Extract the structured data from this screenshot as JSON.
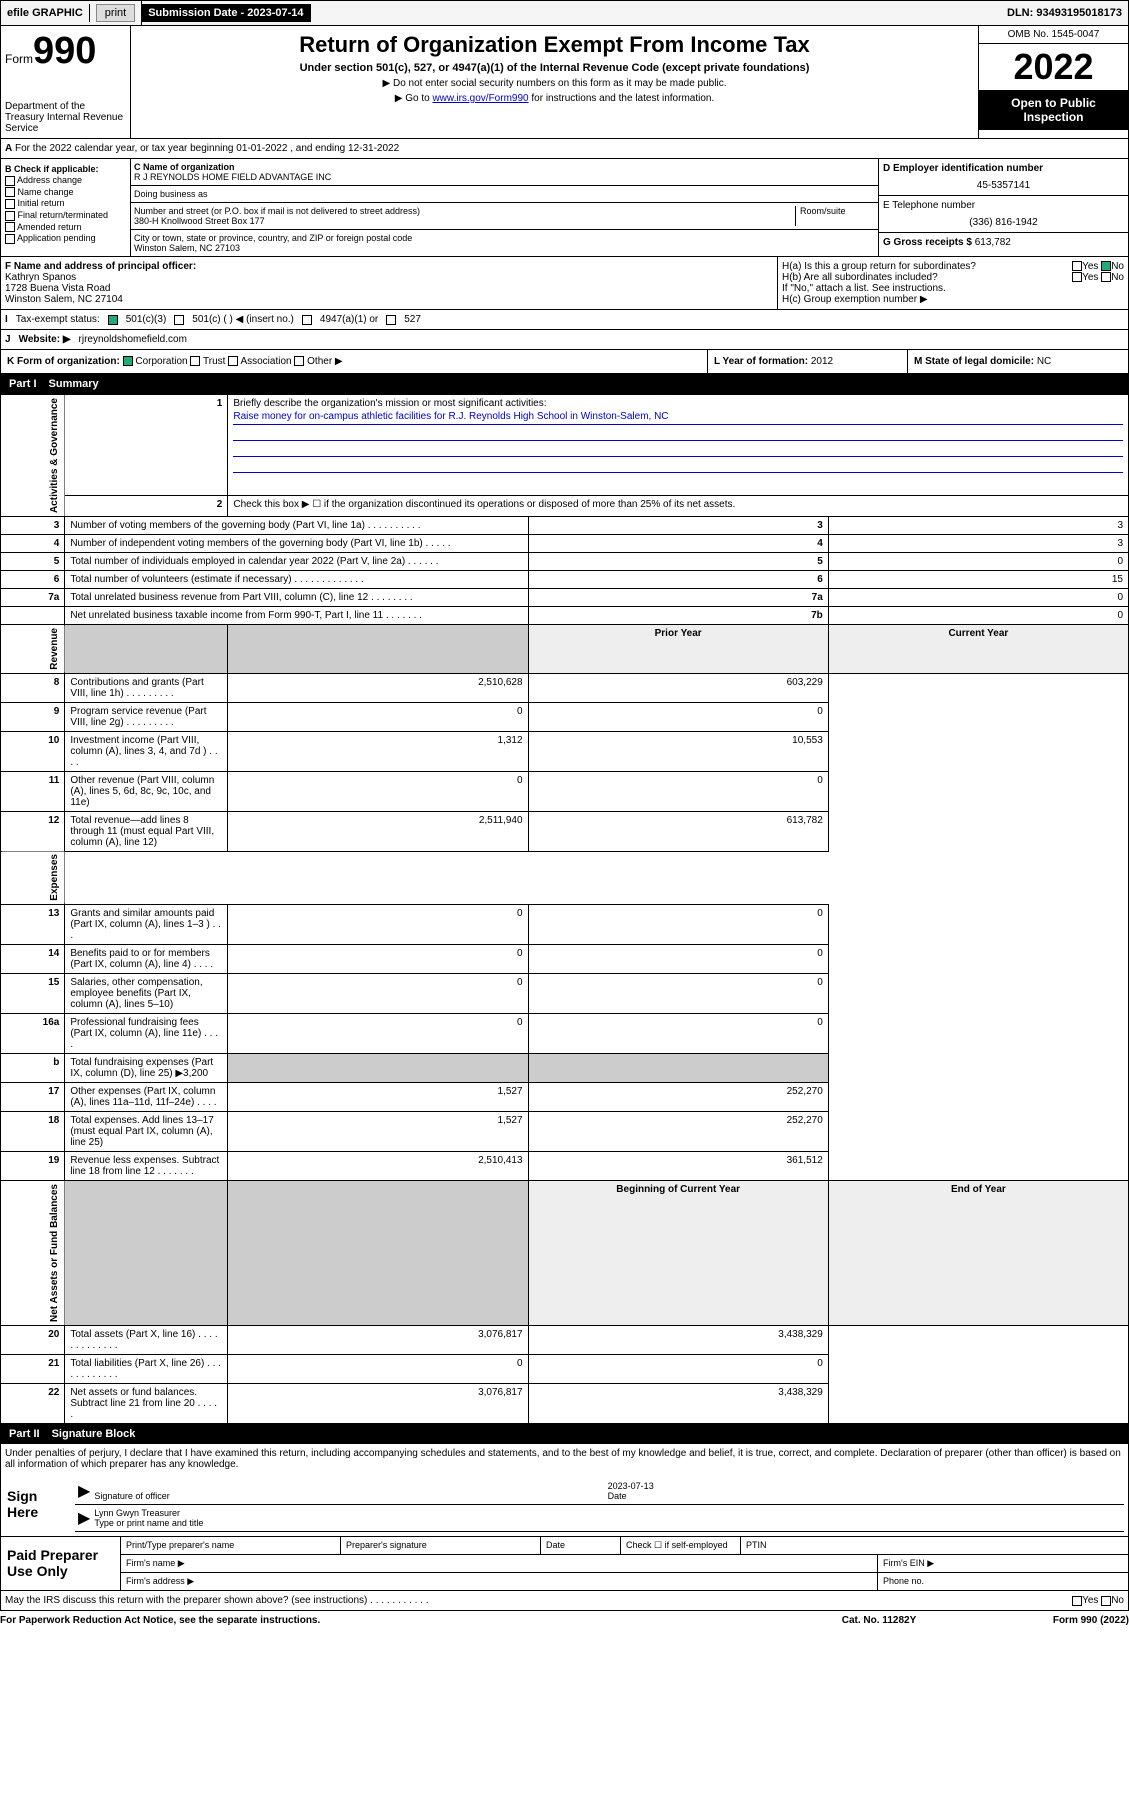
{
  "header_bar": {
    "efile": "efile GRAPHIC",
    "print": "print",
    "sub_date_label": "Submission Date - 2023-07-14",
    "dln": "DLN: 93493195018173"
  },
  "form_header": {
    "form_word": "Form",
    "number": "990",
    "dept": "Department of the Treasury Internal Revenue Service",
    "title": "Return of Organization Exempt From Income Tax",
    "subtitle": "Under section 501(c), 527, or 4947(a)(1) of the Internal Revenue Code (except private foundations)",
    "note1": "▶ Do not enter social security numbers on this form as it may be made public.",
    "note2_prefix": "▶ Go to ",
    "note2_link": "www.irs.gov/Form990",
    "note2_suffix": " for instructions and the latest information.",
    "omb": "OMB No. 1545-0047",
    "year": "2022",
    "open_public": "Open to Public Inspection"
  },
  "section_a": "For the 2022 calendar year, or tax year beginning 01-01-2022    , and ending 12-31-2022",
  "col_b": {
    "header": "B Check if applicable:",
    "items": [
      "Address change",
      "Name change",
      "Initial return",
      "Final return/terminated",
      "Amended return",
      "Application pending"
    ]
  },
  "col_c": {
    "name_label": "C Name of organization",
    "name": "R J REYNOLDS HOME FIELD ADVANTAGE INC",
    "dba_label": "Doing business as",
    "dba": "",
    "addr_label": "Number and street (or P.O. box if mail is not delivered to street address)",
    "addr": "380-H Knollwood Street Box 177",
    "room_label": "Room/suite",
    "city_label": "City or town, state or province, country, and ZIP or foreign postal code",
    "city": "Winston Salem, NC  27103"
  },
  "col_d": {
    "ein_label": "D Employer identification number",
    "ein": "45-5357141",
    "phone_label": "E Telephone number",
    "phone": "(336) 816-1942",
    "gross_label": "G Gross receipts $",
    "gross": "613,782"
  },
  "col_f": {
    "label": "F  Name and address of principal officer:",
    "name": "Kathryn Spanos",
    "addr1": "1728 Buena Vista Road",
    "addr2": "Winston Salem, NC  27104"
  },
  "col_h": {
    "ha": "H(a)  Is this a group return for subordinates?",
    "hb": "H(b)  Are all subordinates included?",
    "hb_note": "If \"No,\" attach a list. See instructions.",
    "hc": "H(c)  Group exemption number ▶",
    "yes": "Yes",
    "no": "No"
  },
  "row_i": {
    "label": "Tax-exempt status:",
    "opts": [
      "501(c)(3)",
      "501(c) (  ) ◀ (insert no.)",
      "4947(a)(1) or",
      "527"
    ]
  },
  "row_j": {
    "label": "Website: ▶",
    "value": "rjreynoldshomefield.com"
  },
  "row_k": {
    "label": "K Form of organization:",
    "opts": [
      "Corporation",
      "Trust",
      "Association",
      "Other ▶"
    ]
  },
  "row_l": {
    "label": "L Year of formation:",
    "value": "2012"
  },
  "row_m": {
    "label": "M State of legal domicile:",
    "value": "NC"
  },
  "part1": {
    "label": "Part I",
    "title": "Summary"
  },
  "summary": {
    "line1_label": "Briefly describe the organization's mission or most significant activities:",
    "line1_text": "Raise money for on-campus athletic facilities for R.J. Reynolds High School in Winston-Salem, NC",
    "line2": "Check this box ▶ ☐  if the organization discontinued its operations or disposed of more than 25% of its net assets.",
    "rows_gov": [
      {
        "n": "3",
        "label": "Number of voting members of the governing body (Part VI, line 1a)  .  .  .  .  .  .  .  .  .  .",
        "box": "3",
        "val": "3"
      },
      {
        "n": "4",
        "label": "Number of independent voting members of the governing body (Part VI, line 1b)  .  .  .  .  .",
        "box": "4",
        "val": "3"
      },
      {
        "n": "5",
        "label": "Total number of individuals employed in calendar year 2022 (Part V, line 2a)  .  .  .  .  .  .",
        "box": "5",
        "val": "0"
      },
      {
        "n": "6",
        "label": "Total number of volunteers (estimate if necessary)  .  .  .  .  .  .  .  .  .  .  .  .  .",
        "box": "6",
        "val": "15"
      },
      {
        "n": "7a",
        "label": "Total unrelated business revenue from Part VIII, column (C), line 12  .  .  .  .  .  .  .  .",
        "box": "7a",
        "val": "0"
      },
      {
        "n": "",
        "label": "Net unrelated business taxable income from Form 990-T, Part I, line 11  .  .  .  .  .  .  .",
        "box": "7b",
        "val": "0"
      }
    ],
    "prior_year": "Prior Year",
    "current_year": "Current Year",
    "rows_rev": [
      {
        "n": "8",
        "label": "Contributions and grants (Part VIII, line 1h)  .  .  .  .  .  .  .  .  .",
        "py": "2,510,628",
        "cy": "603,229"
      },
      {
        "n": "9",
        "label": "Program service revenue (Part VIII, line 2g)  .  .  .  .  .  .  .  .  .",
        "py": "0",
        "cy": "0"
      },
      {
        "n": "10",
        "label": "Investment income (Part VIII, column (A), lines 3, 4, and 7d )  .  .  .  .",
        "py": "1,312",
        "cy": "10,553"
      },
      {
        "n": "11",
        "label": "Other revenue (Part VIII, column (A), lines 5, 6d, 8c, 9c, 10c, and 11e)",
        "py": "0",
        "cy": "0"
      },
      {
        "n": "12",
        "label": "Total revenue—add lines 8 through 11 (must equal Part VIII, column (A), line 12)",
        "py": "2,511,940",
        "cy": "613,782"
      }
    ],
    "rows_exp": [
      {
        "n": "13",
        "label": "Grants and similar amounts paid (Part IX, column (A), lines 1–3 )  .  .  .",
        "py": "0",
        "cy": "0"
      },
      {
        "n": "14",
        "label": "Benefits paid to or for members (Part IX, column (A), line 4)  .  .  .  .",
        "py": "0",
        "cy": "0"
      },
      {
        "n": "15",
        "label": "Salaries, other compensation, employee benefits (Part IX, column (A), lines 5–10)",
        "py": "0",
        "cy": "0"
      },
      {
        "n": "16a",
        "label": "Professional fundraising fees (Part IX, column (A), line 11e)  .  .  .  .",
        "py": "0",
        "cy": "0"
      },
      {
        "n": "b",
        "label": "Total fundraising expenses (Part IX, column (D), line 25) ▶3,200",
        "py": "",
        "cy": "",
        "shade": true
      },
      {
        "n": "17",
        "label": "Other expenses (Part IX, column (A), lines 11a–11d, 11f–24e)  .  .  .  .",
        "py": "1,527",
        "cy": "252,270"
      },
      {
        "n": "18",
        "label": "Total expenses. Add lines 13–17 (must equal Part IX, column (A), line 25)",
        "py": "1,527",
        "cy": "252,270"
      },
      {
        "n": "19",
        "label": "Revenue less expenses. Subtract line 18 from line 12  .  .  .  .  .  .  .",
        "py": "2,510,413",
        "cy": "361,512"
      }
    ],
    "beg_year": "Beginning of Current Year",
    "end_year": "End of Year",
    "rows_net": [
      {
        "n": "20",
        "label": "Total assets (Part X, line 16)  .  .  .  .  .  .  .  .  .  .  .  .  .",
        "py": "3,076,817",
        "cy": "3,438,329"
      },
      {
        "n": "21",
        "label": "Total liabilities (Part X, line 26)  .  .  .  .  .  .  .  .  .  .  .  .",
        "py": "0",
        "cy": "0"
      },
      {
        "n": "22",
        "label": "Net assets or fund balances. Subtract line 21 from line 20  .  .  .  .  .",
        "py": "3,076,817",
        "cy": "3,438,329"
      }
    ],
    "side_gov": "Activities & Governance",
    "side_rev": "Revenue",
    "side_exp": "Expenses",
    "side_net": "Net Assets or Fund Balances"
  },
  "part2": {
    "label": "Part II",
    "title": "Signature Block"
  },
  "penalties": "Under penalties of perjury, I declare that I have examined this return, including accompanying schedules and statements, and to the best of my knowledge and belief, it is true, correct, and complete. Declaration of preparer (other than officer) is based on all information of which preparer has any knowledge.",
  "sign": {
    "here": "Sign Here",
    "sig_officer": "Signature of officer",
    "date_val": "2023-07-13",
    "date": "Date",
    "name": "Lynn Gwyn Treasurer",
    "name_label": "Type or print name and title"
  },
  "paid": {
    "label": "Paid Preparer Use Only",
    "h1": "Print/Type preparer's name",
    "h2": "Preparer's signature",
    "h3": "Date",
    "h4_check": "Check ☐  if self-employed",
    "h5": "PTIN",
    "firm_name": "Firm's name    ▶",
    "firm_ein": "Firm's EIN ▶",
    "firm_addr": "Firm's address ▶",
    "phone": "Phone no."
  },
  "footer": {
    "irs_discuss": "May the IRS discuss this return with the preparer shown above? (see instructions)  .  .  .  .  .  .  .  .  .  .  .",
    "yes": "Yes",
    "no": "No",
    "paperwork": "For Paperwork Reduction Act Notice, see the separate instructions.",
    "cat": "Cat. No. 11282Y",
    "form": "Form 990 (2022)"
  },
  "colors": {
    "link": "#0000cc",
    "mission": "#0033cc"
  }
}
